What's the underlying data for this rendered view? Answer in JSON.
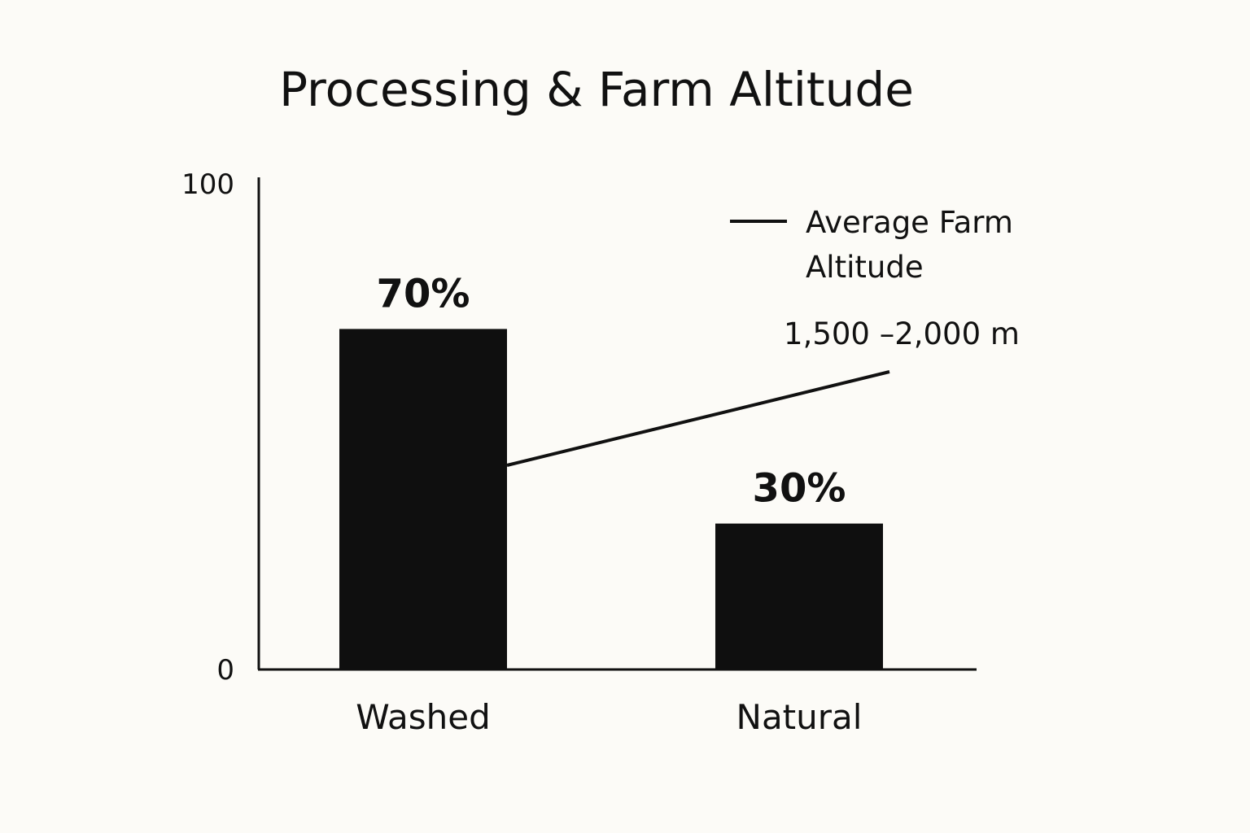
{
  "chart_data": {
    "type": "bar",
    "title": "Processing & Farm Altitude",
    "categories": [
      "Washed",
      "Natural"
    ],
    "values": [
      70,
      30
    ],
    "value_labels": [
      "70%",
      "30%"
    ],
    "y_ticks": [
      "100",
      "0"
    ],
    "ylim": [
      0,
      100
    ],
    "xlabel": "",
    "ylabel": "",
    "grid": false,
    "bar_color": "#0f0f0f",
    "line_series": {
      "name": "Average Farm Altitude",
      "legend_lines": [
        "Average Farm",
        "Altitude"
      ],
      "annotation": "1,500 –2,000 m",
      "color": "#111111"
    },
    "legend_position": "top-right"
  }
}
